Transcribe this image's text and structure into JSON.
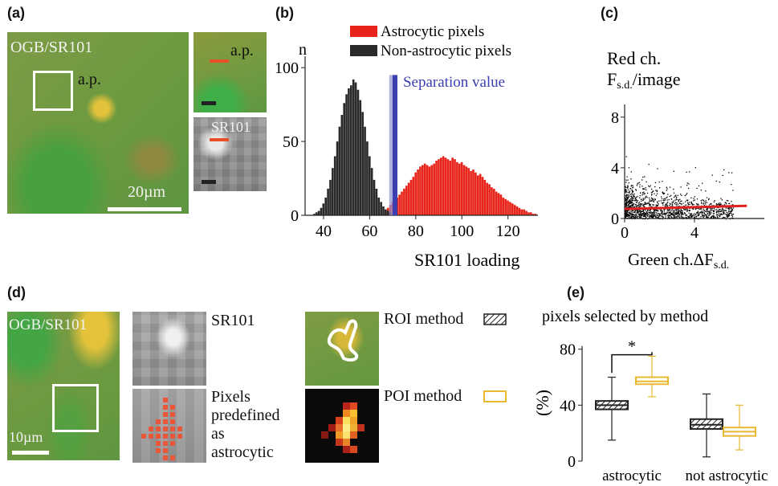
{
  "panel_a": {
    "letter": "(a)",
    "overlay_title": "OGB/SR101",
    "ap_label": "a.p.",
    "scalebar": "20µm",
    "inset_top_label": "a.p.",
    "inset_bottom_label": "SR101"
  },
  "panel_d": {
    "letter": "(d)",
    "overlay_title": "OGB/SR101",
    "scalebar": "10µm",
    "sr101_label": "SR101",
    "pixels_label": [
      "Pixels",
      "predefined",
      "as",
      "astrocytic"
    ],
    "roi_label": "ROI method",
    "poi_label": "POI method"
  },
  "colors": {
    "astro": "#e8241a",
    "nonastro": "#2a2a2a",
    "separation": "#3b3fb0",
    "fit": "#e02020",
    "poi": "#e8b830",
    "green_bg": "#6f9a3c"
  },
  "chart_data": [
    {
      "panel": "(b)",
      "type": "bar",
      "ylabel": "n",
      "xlabel": "SR101 loading",
      "xticks": [
        40,
        60,
        80,
        100,
        120
      ],
      "yticks": [
        0,
        50,
        100
      ],
      "xlim": [
        32,
        133
      ],
      "ylim": [
        0,
        105
      ],
      "separation_label": "Separation value",
      "separation_value": 71,
      "legend": "top",
      "series": [
        {
          "name": "Astrocytic pixels",
          "color": "#e8241a",
          "x": [
            67,
            68,
            69,
            70,
            71,
            72,
            73,
            74,
            75,
            76,
            77,
            78,
            79,
            80,
            81,
            82,
            83,
            84,
            85,
            86,
            87,
            88,
            89,
            90,
            91,
            92,
            93,
            94,
            95,
            96,
            97,
            98,
            99,
            100,
            101,
            102,
            103,
            104,
            105,
            106,
            107,
            108,
            109,
            110,
            111,
            112,
            113,
            114,
            115,
            116,
            117,
            118,
            119,
            120,
            121,
            122,
            123,
            124,
            125,
            126,
            127,
            128,
            129,
            130,
            131,
            132
          ],
          "values": [
            3,
            5,
            7,
            9,
            10,
            12,
            14,
            16,
            18,
            20,
            22,
            24,
            26,
            29,
            31,
            33,
            34,
            35,
            34,
            33,
            34,
            35,
            37,
            38,
            39,
            40,
            39,
            38,
            37,
            39,
            38,
            36,
            35,
            36,
            34,
            33,
            32,
            30,
            31,
            29,
            27,
            28,
            26,
            24,
            22,
            21,
            19,
            18,
            16,
            15,
            14,
            12,
            11,
            10,
            9,
            8,
            7,
            6,
            5,
            4,
            4,
            3,
            2,
            2,
            1,
            1
          ]
        },
        {
          "name": "Non-astrocytic pixels",
          "color": "#2a2a2a",
          "x": [
            36,
            37,
            38,
            39,
            40,
            41,
            42,
            43,
            44,
            45,
            46,
            47,
            48,
            49,
            50,
            51,
            52,
            53,
            54,
            55,
            56,
            57,
            58,
            59,
            60,
            61,
            62,
            63,
            64,
            65,
            66,
            67,
            68,
            69,
            70,
            71
          ],
          "values": [
            1,
            2,
            3,
            5,
            8,
            12,
            18,
            24,
            32,
            40,
            50,
            60,
            68,
            76,
            82,
            86,
            88,
            92,
            90,
            85,
            78,
            70,
            60,
            50,
            40,
            32,
            24,
            18,
            12,
            9,
            6,
            4,
            3,
            2,
            1,
            1
          ]
        }
      ]
    },
    {
      "panel": "(c)",
      "type": "scatter",
      "title": "Red ch. Fs.d./image",
      "xlabel": "Green ch.ΔFs.d.",
      "xticks": [
        0,
        4
      ],
      "yticks": [
        0,
        4,
        8
      ],
      "xlim": [
        0,
        8
      ],
      "ylim": [
        0,
        9
      ],
      "fit_line": {
        "x": [
          0,
          7
        ],
        "y": [
          0.75,
          1.0
        ]
      }
    },
    {
      "panel": "(e)",
      "type": "box",
      "title": "pixels selected by method",
      "ylabel": "(%)",
      "yticks": [
        0,
        40,
        80
      ],
      "ylim": [
        0,
        85
      ],
      "categories": [
        "astrocytic",
        "not astrocytic"
      ],
      "significance": "*",
      "series": [
        {
          "name": "ROI method",
          "color": "#222222",
          "boxes": [
            {
              "min": 15,
              "q1": 37,
              "median": 40,
              "q3": 43,
              "max": 60
            },
            {
              "min": 3,
              "q1": 23,
              "median": 26,
              "q3": 30,
              "max": 48
            }
          ]
        },
        {
          "name": "POI method",
          "color": "#e8b830",
          "boxes": [
            {
              "min": 46,
              "q1": 55,
              "median": 57,
              "q3": 60,
              "max": 75
            },
            {
              "min": 8,
              "q1": 18,
              "median": 21,
              "q3": 24,
              "max": 40
            }
          ]
        }
      ]
    }
  ]
}
